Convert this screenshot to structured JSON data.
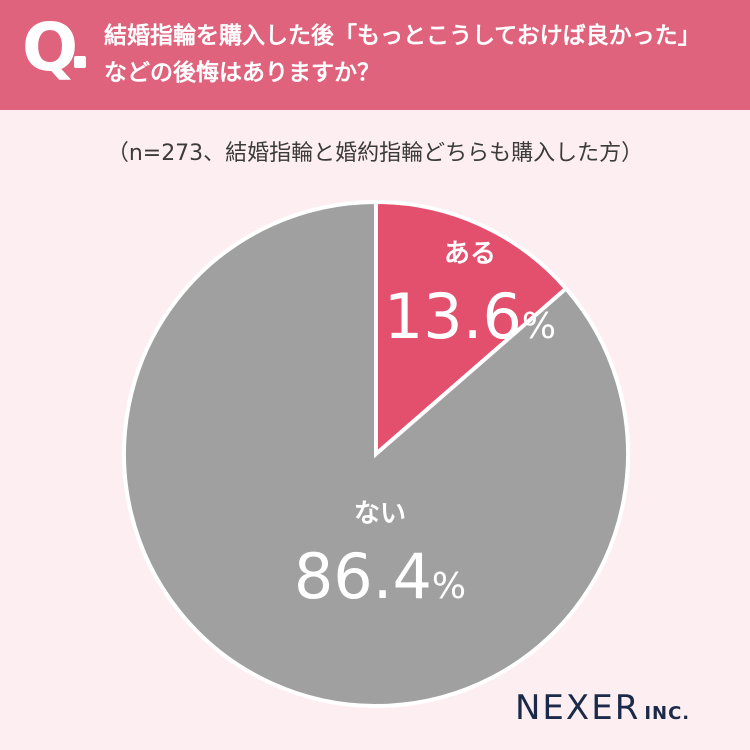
{
  "header": {
    "q_mark": "Q",
    "question_line1": "結婚指輪を購入した後「もっとこうしておけば良かった」",
    "question_line2": "などの後悔はありますか？"
  },
  "note": "（n=273、結婚指輪と婚約指輪どちらも購入した方）",
  "chart_data": {
    "type": "pie",
    "unit": "%",
    "slices": [
      {
        "label": "ある",
        "value": 13.6,
        "color": "#e3506e"
      },
      {
        "label": "ない",
        "value": 86.4,
        "color": "#a0a0a0"
      }
    ]
  },
  "logo": {
    "main": "NEXER",
    "suffix": "INC."
  }
}
